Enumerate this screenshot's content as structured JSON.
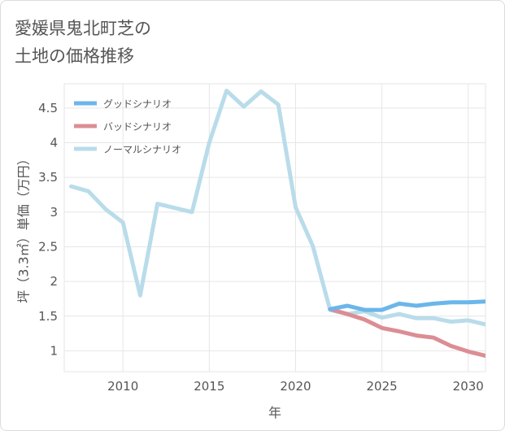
{
  "title": "愛媛県鬼北町芝の\n土地の価格推移",
  "chart_data": {
    "type": "line",
    "xlabel": "年",
    "ylabel": "坪（3.3㎡）単価（万円）",
    "xlim": [
      2006.6,
      2031
    ],
    "ylim": [
      0.7,
      4.85
    ],
    "xticks": [
      2010,
      2015,
      2020,
      2025,
      2030
    ],
    "yticks": [
      1,
      1.5,
      2,
      2.5,
      3,
      3.5,
      4,
      4.5
    ],
    "ytick_labels": [
      "1",
      "1.5",
      "2",
      "2.5",
      "3",
      "3.5",
      "4",
      "4.5"
    ],
    "grid": true,
    "legend_position": "top-left",
    "series": [
      {
        "name": "グッドシナリオ",
        "color": "#6bb6ea",
        "x": [
          2022,
          2023,
          2024,
          2025,
          2026,
          2027,
          2028,
          2029,
          2030,
          2031
        ],
        "y": [
          1.6,
          1.65,
          1.59,
          1.59,
          1.68,
          1.65,
          1.68,
          1.7,
          1.7,
          1.71
        ]
      },
      {
        "name": "バッドシナリオ",
        "color": "#dc8d94",
        "x": [
          2022,
          2023,
          2024,
          2025,
          2026,
          2027,
          2028,
          2029,
          2030,
          2031
        ],
        "y": [
          1.6,
          1.53,
          1.45,
          1.33,
          1.28,
          1.22,
          1.19,
          1.07,
          0.99,
          0.93
        ]
      },
      {
        "name": "ノーマルシナリオ",
        "color": "#b9dcea",
        "x": [
          2007,
          2008,
          2009,
          2010,
          2011,
          2012,
          2013,
          2014,
          2015,
          2016,
          2017,
          2018,
          2019,
          2020,
          2021,
          2022,
          2023,
          2024,
          2025,
          2026,
          2027,
          2028,
          2029,
          2030,
          2031
        ],
        "y": [
          3.37,
          3.3,
          3.04,
          2.85,
          1.8,
          3.12,
          3.06,
          3.0,
          4.0,
          4.75,
          4.52,
          4.74,
          4.55,
          3.07,
          2.51,
          1.59,
          1.53,
          1.57,
          1.48,
          1.53,
          1.47,
          1.47,
          1.42,
          1.44,
          1.38
        ]
      }
    ]
  }
}
